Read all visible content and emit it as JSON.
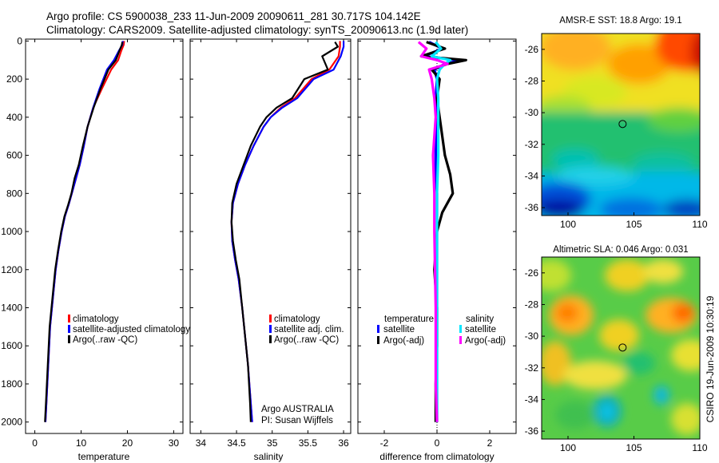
{
  "header": {
    "line1": "Argo profile: CS 5900038_233 11-Jun-2009 20090611_281 30.717S 104.142E",
    "line2": "Climatology: CARS2009. Satellite-adjusted climatology: synTS_20090613.nc (1.9d later)"
  },
  "side_label": "CSIRO 19-Jun-2009 10:30:19",
  "colors": {
    "climatology": "#ff0000",
    "satellite": "#0000ff",
    "argo": "#000000",
    "sat_sal": "#00e5ff",
    "argo_sal": "#ff00ff"
  },
  "chart_data": [
    {
      "type": "line",
      "id": "temperature",
      "xlabel": "temperature",
      "xlim": [
        -2,
        32
      ],
      "ylim": [
        2060,
        -10
      ],
      "xticks": [
        0,
        10,
        20,
        30
      ],
      "yticks": [
        0,
        200,
        400,
        600,
        800,
        1000,
        1200,
        1400,
        1600,
        1800,
        2000
      ],
      "legend": [
        "climatology",
        "satellite-adjusted climatology",
        "Argo(..raw -QC)"
      ],
      "series": [
        {
          "name": "climatology",
          "color": "#ff0000",
          "x": [
            19.3,
            19.2,
            18.7,
            18.0,
            16.5,
            14.5,
            12.6,
            11.4,
            10.6,
            9.7,
            8.9,
            8.0,
            7.3,
            6.5,
            5.8,
            5.1,
            4.5,
            3.9,
            3.3,
            2.9,
            2.5,
            2.3
          ],
          "y": [
            0,
            20,
            50,
            100,
            150,
            250,
            350,
            450,
            550,
            650,
            720,
            800,
            860,
            920,
            1000,
            1100,
            1200,
            1350,
            1500,
            1700,
            1900,
            2000
          ]
        },
        {
          "name": "satellite-adjusted climatology",
          "color": "#0000ff",
          "x": [
            19.0,
            18.9,
            18.2,
            17.1,
            15.6,
            14.0,
            12.6,
            11.4,
            10.6,
            9.7,
            8.9,
            8.0,
            7.3,
            6.5,
            5.8,
            5.1,
            4.5,
            3.9,
            3.3,
            2.9,
            2.5,
            2.3
          ],
          "y": [
            0,
            20,
            50,
            100,
            150,
            250,
            350,
            450,
            550,
            650,
            720,
            800,
            860,
            920,
            1000,
            1100,
            1200,
            1350,
            1500,
            1700,
            1900,
            2000
          ]
        },
        {
          "name": "Argo(..raw -QC)",
          "color": "#000000",
          "x": [
            18.9,
            18.8,
            18.3,
            17.5,
            15.9,
            14.2,
            12.7,
            11.4,
            10.4,
            9.5,
            8.6,
            7.9,
            7.2,
            6.4,
            5.7,
            5.0,
            4.4,
            3.8,
            3.2,
            2.8,
            2.4,
            2.2
          ],
          "y": [
            5,
            20,
            50,
            100,
            150,
            250,
            350,
            450,
            550,
            650,
            720,
            800,
            860,
            920,
            1000,
            1100,
            1200,
            1350,
            1500,
            1700,
            1900,
            2000
          ]
        }
      ]
    },
    {
      "type": "line",
      "id": "salinity",
      "xlabel": "salinity",
      "xlim": [
        33.85,
        36.1
      ],
      "ylim": [
        2060,
        -10
      ],
      "xticks": [
        34,
        34.5,
        35,
        35.5,
        36
      ],
      "legend": [
        "climatology",
        "satellite adj. clim.",
        "Argo(..raw -QC)"
      ],
      "annotation": [
        "Argo AUSTRALIA",
        "PI: Susan Wijffels"
      ],
      "series": [
        {
          "name": "climatology",
          "color": "#ff0000",
          "x": [
            35.95,
            35.95,
            35.93,
            35.8,
            35.55,
            35.32,
            35.12,
            34.98,
            34.88,
            34.74,
            34.62,
            34.52,
            34.45,
            34.43,
            34.44,
            34.48,
            34.53,
            34.58,
            34.62,
            34.66,
            34.7,
            34.72
          ],
          "y": [
            0,
            30,
            80,
            150,
            200,
            300,
            350,
            400,
            450,
            550,
            650,
            750,
            850,
            950,
            1050,
            1150,
            1250,
            1400,
            1550,
            1700,
            1900,
            2000
          ]
        },
        {
          "name": "satellite adj. clim.",
          "color": "#0000ff",
          "x": [
            36.0,
            36.0,
            35.96,
            35.86,
            35.58,
            35.35,
            35.14,
            34.98,
            34.88,
            34.74,
            34.62,
            34.52,
            34.45,
            34.43,
            34.44,
            34.48,
            34.53,
            34.58,
            34.62,
            34.66,
            34.7,
            34.72
          ],
          "y": [
            0,
            30,
            80,
            150,
            200,
            300,
            350,
            400,
            450,
            550,
            650,
            750,
            850,
            950,
            1050,
            1150,
            1250,
            1400,
            1550,
            1700,
            1900,
            2000
          ]
        },
        {
          "name": "Argo(..raw -QC)",
          "color": "#000000",
          "x": [
            35.88,
            35.92,
            35.7,
            35.78,
            35.45,
            35.28,
            35.06,
            34.92,
            34.83,
            34.7,
            34.6,
            34.5,
            34.44,
            34.43,
            34.45,
            34.49,
            34.54,
            34.58,
            34.62,
            34.66,
            34.69,
            34.7
          ],
          "y": [
            5,
            30,
            80,
            150,
            200,
            300,
            350,
            400,
            450,
            550,
            650,
            750,
            850,
            950,
            1050,
            1150,
            1250,
            1400,
            1550,
            1700,
            1900,
            2000
          ]
        }
      ]
    },
    {
      "type": "line",
      "id": "difference",
      "xlabel": "difference from climatology",
      "xlim": [
        -3,
        3
      ],
      "ylim": [
        2060,
        -10
      ],
      "xticks": [
        -2,
        0,
        2
      ],
      "legend_groups": [
        {
          "title": "temperature",
          "items": [
            "satellite",
            "Argo(-adj)"
          ]
        },
        {
          "title": "salinity",
          "items": [
            "satellite",
            "Argo(-adj)"
          ]
        }
      ],
      "series": [
        {
          "name": "temperature satellite",
          "color": "#0000ff",
          "x": [
            -0.3,
            0.2,
            -0.5,
            0.9,
            0.3,
            -0.1,
            0.0,
            -0.05,
            0.0,
            -0.05,
            -0.05,
            -0.05,
            0.0,
            0.0,
            0.0,
            0.0,
            0.0
          ],
          "y": [
            5,
            40,
            80,
            100,
            120,
            150,
            200,
            300,
            400,
            500,
            600,
            700,
            800,
            1000,
            1400,
            1800,
            2000
          ]
        },
        {
          "name": "temperature Argo(-adj)",
          "color": "#000000",
          "x": [
            -0.4,
            0.3,
            -0.6,
            1.1,
            0.4,
            -0.2,
            0.1,
            0.0,
            0.1,
            0.2,
            0.3,
            0.5,
            0.6,
            0.4,
            0.2,
            0.0,
            -0.1,
            0.0,
            0.0,
            -0.05,
            -0.05
          ],
          "y": [
            5,
            40,
            80,
            100,
            120,
            150,
            200,
            300,
            400,
            500,
            600,
            700,
            800,
            850,
            900,
            1000,
            1200,
            1400,
            1600,
            1800,
            2000
          ]
        },
        {
          "name": "salinity satellite",
          "color": "#00e5ff",
          "x": [
            -0.05,
            0.15,
            -0.2,
            0.5,
            0.3,
            0.1,
            0.0,
            0.05,
            0.05,
            0.05,
            0.0,
            0.0,
            0.0,
            0.0,
            0.0
          ],
          "y": [
            5,
            40,
            80,
            100,
            120,
            150,
            200,
            300,
            400,
            600,
            800,
            1000,
            1400,
            1800,
            2000
          ]
        },
        {
          "name": "salinity Argo(-adj)",
          "color": "#ff00ff",
          "x": [
            -0.7,
            -0.4,
            -0.6,
            0.0,
            0.4,
            -0.3,
            -0.2,
            -0.1,
            -0.05,
            -0.1,
            -0.15,
            -0.1,
            -0.1,
            -0.05,
            -0.05,
            0.0
          ],
          "y": [
            5,
            40,
            80,
            100,
            120,
            150,
            200,
            300,
            400,
            500,
            600,
            800,
            1000,
            1400,
            1800,
            2000
          ]
        }
      ]
    },
    {
      "type": "heatmap",
      "id": "sst_map",
      "title": "AMSR-E SST: 18.8 Argo: 19.1",
      "xlim": [
        98,
        110
      ],
      "ylim": [
        -36.5,
        -25
      ],
      "xticks": [
        100,
        105,
        110
      ],
      "yticks": [
        -26,
        -28,
        -30,
        -32,
        -34,
        -36
      ],
      "marker": {
        "lon": 104.142,
        "lat": -30.717
      }
    },
    {
      "type": "heatmap",
      "id": "sla_map",
      "title": "Altimetric SLA: 0.046 Argo: 0.031",
      "xlim": [
        98,
        110
      ],
      "ylim": [
        -36.5,
        -25
      ],
      "xticks": [
        100,
        105,
        110
      ],
      "yticks": [
        -26,
        -28,
        -30,
        -32,
        -34,
        -36
      ],
      "marker": {
        "lon": 104.142,
        "lat": -30.717
      }
    }
  ]
}
